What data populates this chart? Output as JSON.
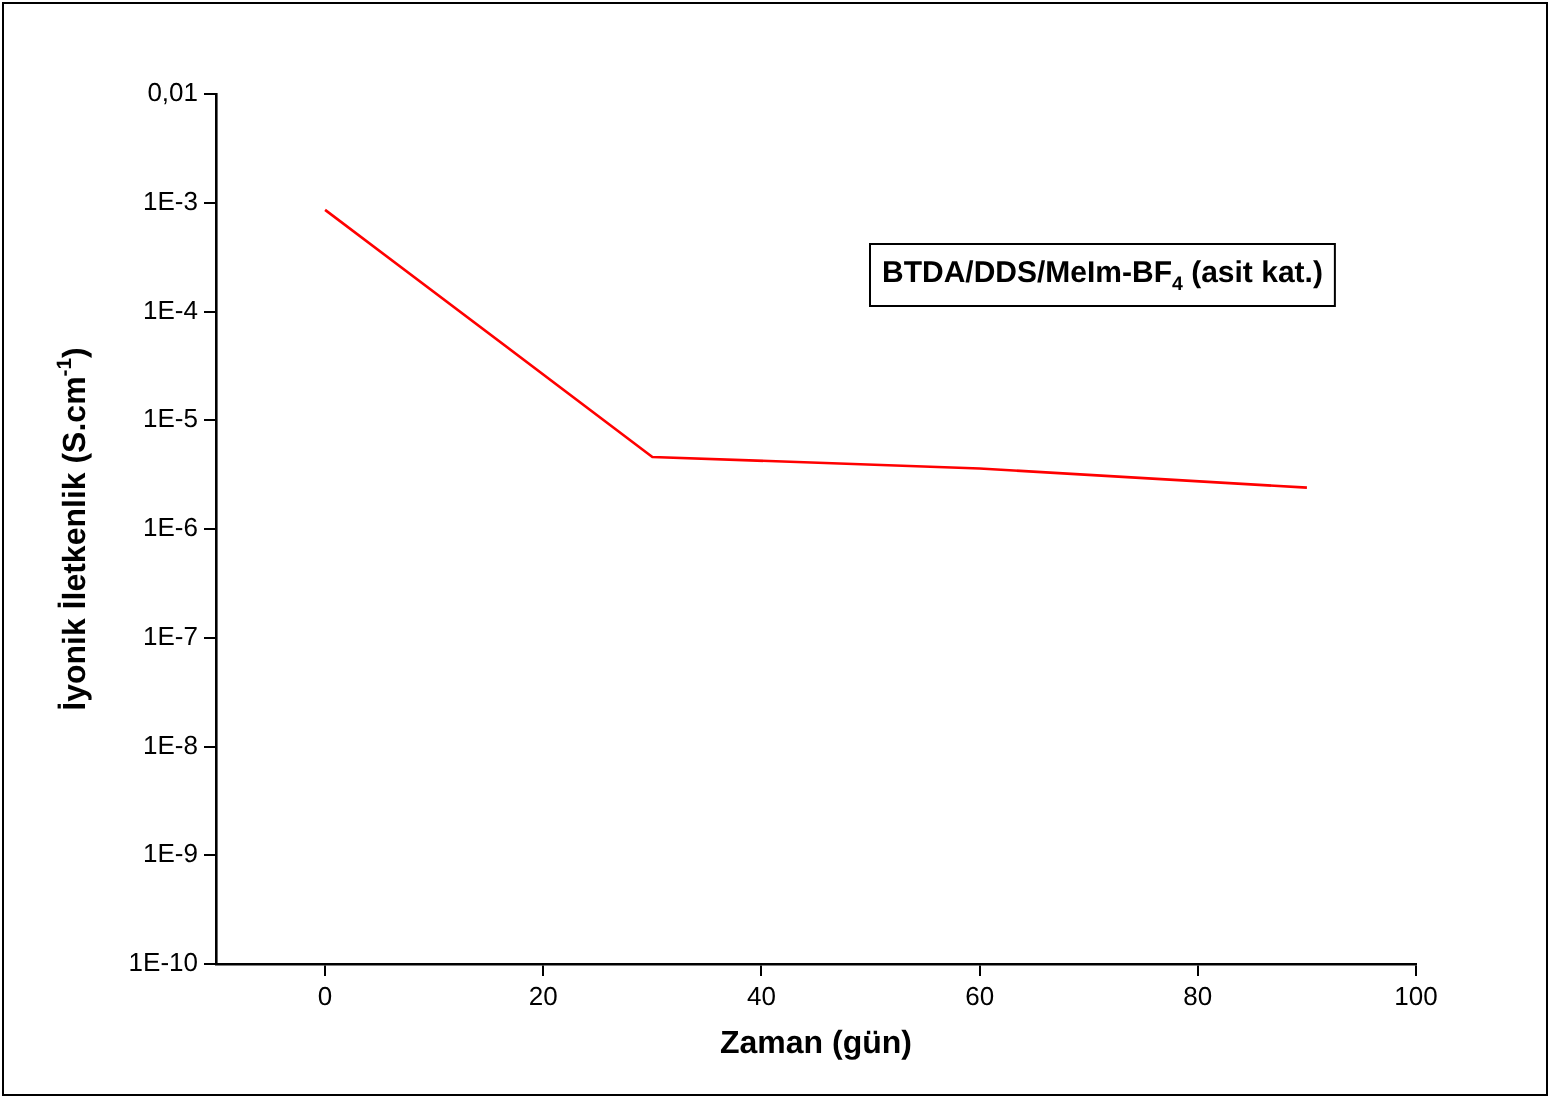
{
  "chart_data": {
    "type": "line",
    "xlabel": "Zaman (gün)",
    "ylabel": "İyonik İletkenlik (S.cm$^{-1}$)",
    "annotations": [
      "BTDA/DDS/MeIm-BF$_{4}$ (asit kat.)"
    ],
    "x": [
      0,
      30,
      60,
      90
    ],
    "series": [
      {
        "color": "#ff0000",
        "values": [
          0.00086,
          4.6e-06,
          3.6e-06,
          2.4e-06
        ]
      }
    ],
    "log": "y",
    "xlim": [
      -10,
      100
    ],
    "xticks": [
      0,
      20,
      40,
      60,
      80,
      100
    ],
    "ylim": [
      1e-10,
      0.01
    ],
    "yticks": [
      {
        "value": 1e-10,
        "label": "1E-10"
      },
      {
        "value": 1e-09,
        "label": "1E-9"
      },
      {
        "value": 1e-08,
        "label": "1E-8"
      },
      {
        "value": 1e-07,
        "label": "1E-7"
      },
      {
        "value": 1e-06,
        "label": "1E-6"
      },
      {
        "value": 1e-05,
        "label": "1E-5"
      },
      {
        "value": 0.0001,
        "label": "1E-4"
      },
      {
        "value": 0.001,
        "label": "1E-3"
      },
      {
        "value": 0.01,
        "label": "0,01"
      }
    ],
    "grid": false,
    "legend": false,
    "marker": "none",
    "line_style": "solid"
  }
}
